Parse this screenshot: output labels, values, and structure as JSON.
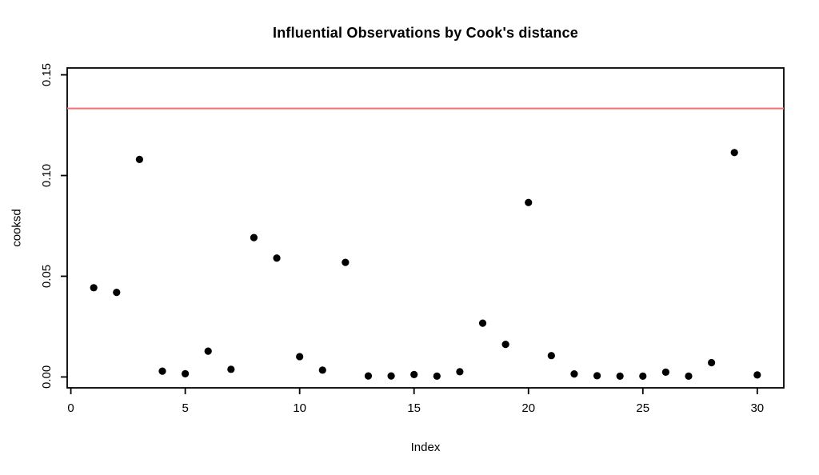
{
  "title": "Influential Observations by Cook's distance",
  "colors": {
    "background": "#ffffff",
    "point": "#000000",
    "axis": "#000000",
    "text": "#000000",
    "threshold_line": "#f87070"
  },
  "chart_data": {
    "type": "scatter",
    "title": "Influential Observations by Cook's distance",
    "xlabel": "Index",
    "ylabel": "cooksd",
    "x": [
      1,
      2,
      3,
      4,
      5,
      6,
      7,
      8,
      9,
      10,
      11,
      12,
      13,
      14,
      15,
      16,
      17,
      18,
      19,
      20,
      21,
      22,
      23,
      24,
      25,
      26,
      27,
      28,
      29,
      30
    ],
    "y": [
      0.0443,
      0.042,
      0.108,
      0.0029,
      0.0016,
      0.0128,
      0.0038,
      0.0692,
      0.059,
      0.0101,
      0.0034,
      0.0569,
      0.0005,
      0.0005,
      0.0012,
      0.0004,
      0.0026,
      0.0267,
      0.0162,
      0.0866,
      0.0106,
      0.0015,
      0.0006,
      0.0004,
      0.0004,
      0.0024,
      0.0004,
      0.0071,
      0.1114,
      0.001
    ],
    "threshold_line_y": 0.1333,
    "x_ticks": [
      0,
      5,
      10,
      15,
      20,
      25,
      30
    ],
    "x_tick_labels": [
      "0",
      "5",
      "10",
      "15",
      "20",
      "25",
      "30"
    ],
    "y_ticks": [
      0.0,
      0.05,
      0.1,
      0.15
    ],
    "y_tick_labels": [
      "0.00",
      "0.05",
      "0.10",
      "0.15"
    ],
    "xlim": [
      -0.16,
      31.16
    ],
    "ylim": [
      -0.0054,
      0.1534
    ],
    "grid": false,
    "legend": "none"
  }
}
